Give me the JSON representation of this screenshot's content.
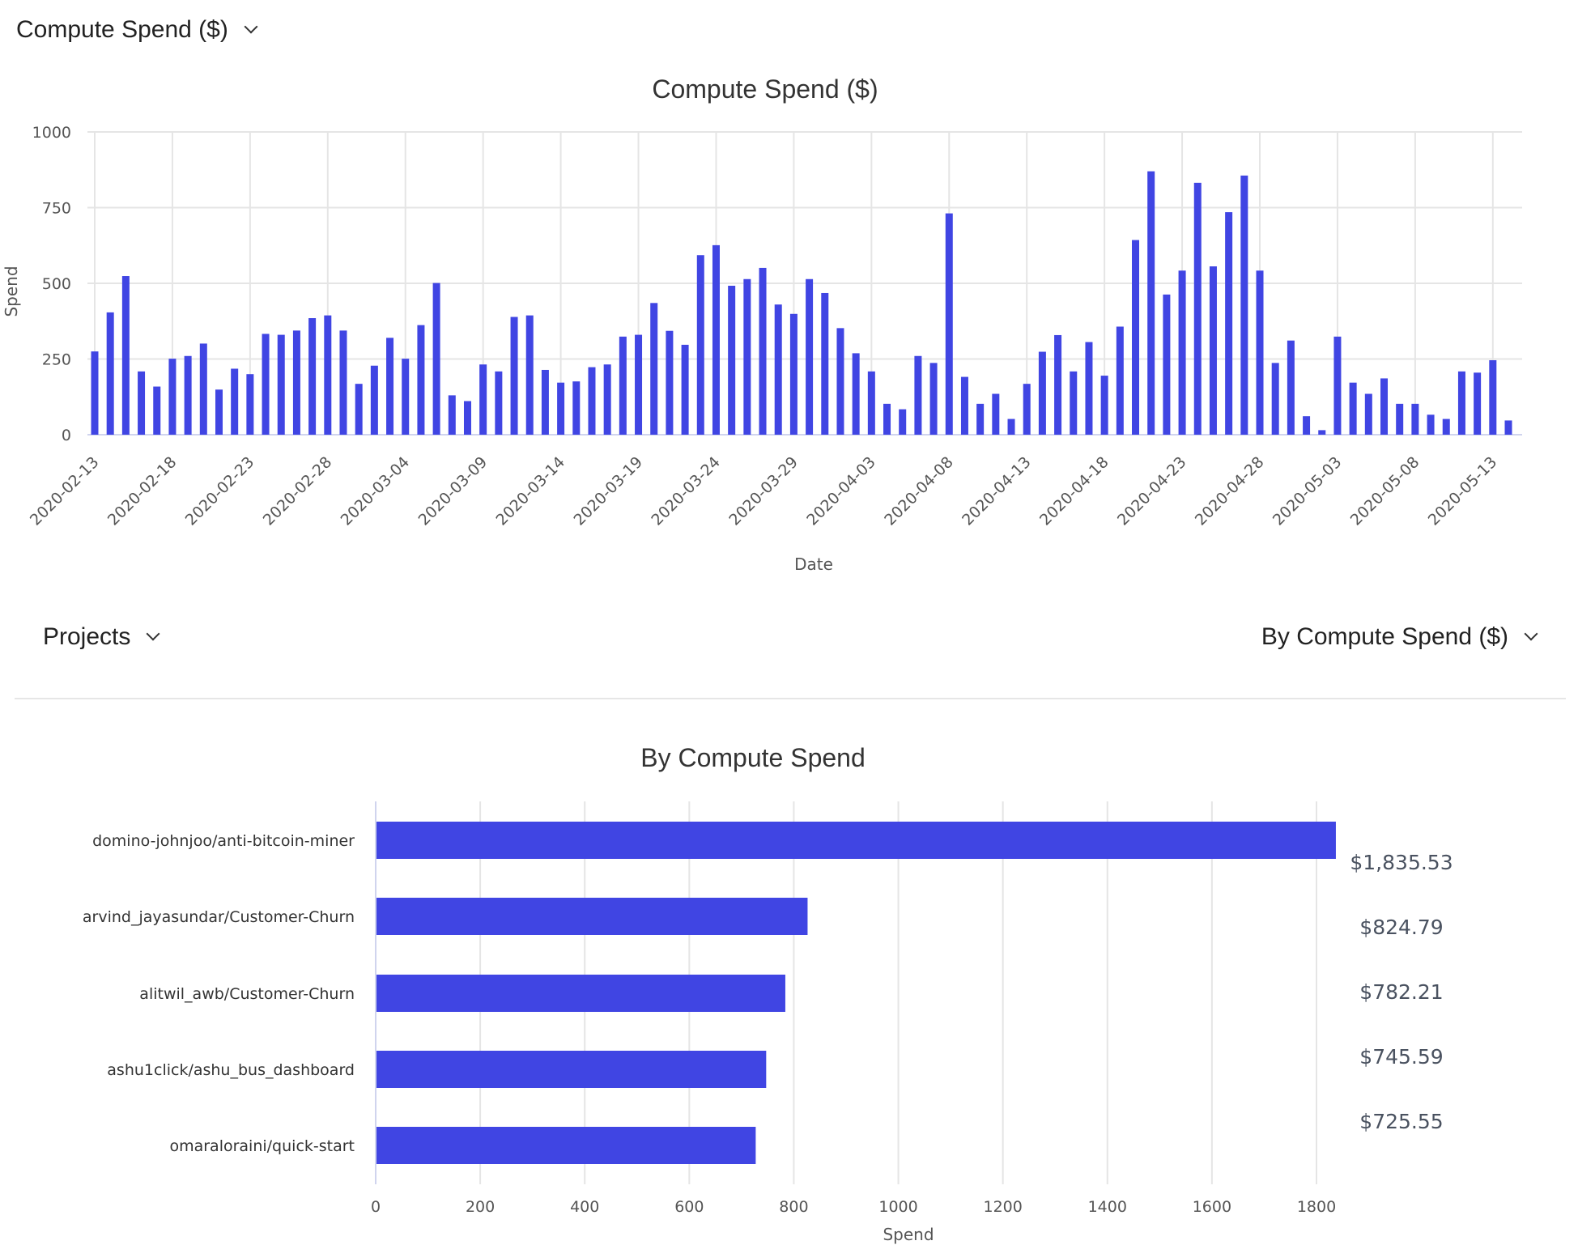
{
  "header": {
    "metric_dropdown": "Compute Spend ($)"
  },
  "colors": {
    "bar": "#4045E3",
    "grid": "#e5e5e5"
  },
  "section2": {
    "group_dropdown": "Projects",
    "sort_dropdown": "By Compute Spend ($)"
  },
  "chart_data": [
    {
      "type": "bar",
      "title": "Compute Spend ($)",
      "xlabel": "Date",
      "ylabel": "Spend",
      "ylim": [
        0,
        1000
      ],
      "yticks": [
        "0",
        "250",
        "500",
        "750",
        "1000"
      ],
      "xticks": [
        "2020-02-13",
        "2020-02-18",
        "2020-02-23",
        "2020-02-28",
        "2020-03-04",
        "2020-03-09",
        "2020-03-14",
        "2020-03-19",
        "2020-03-24",
        "2020-03-29",
        "2020-04-03",
        "2020-04-08",
        "2020-04-13",
        "2020-04-18",
        "2020-04-23",
        "2020-04-28",
        "2020-05-03",
        "2020-05-08",
        "2020-05-13"
      ],
      "grid": true,
      "start_date": "2020-02-13",
      "values": [
        275,
        404,
        524,
        209,
        159,
        251,
        260,
        301,
        149,
        218,
        200,
        333,
        330,
        344,
        385,
        394,
        344,
        168,
        228,
        320,
        251,
        362,
        501,
        130,
        111,
        232,
        209,
        389,
        394,
        214,
        172,
        176,
        223,
        232,
        324,
        330,
        435,
        343,
        297,
        593,
        626,
        492,
        514,
        551,
        430,
        399,
        514,
        468,
        352,
        269,
        209,
        102,
        84,
        260,
        237,
        731,
        191,
        102,
        135,
        52,
        168,
        274,
        329,
        209,
        306,
        195,
        357,
        643,
        870,
        463,
        542,
        832,
        556,
        735,
        856,
        542,
        237,
        311,
        61,
        15,
        324,
        172,
        135,
        186,
        102,
        102,
        66,
        52,
        209,
        205,
        246,
        47
      ]
    },
    {
      "type": "bar",
      "orientation": "horizontal",
      "title": "By Compute Spend",
      "xlabel": "Spend",
      "xlim": [
        0,
        1850
      ],
      "xticks": [
        "0",
        "200",
        "400",
        "600",
        "800",
        "1000",
        "1200",
        "1400",
        "1600",
        "1800"
      ],
      "grid": true,
      "categories": [
        "domino-johnjoo/anti-bitcoin-miner",
        "arvind_jayasundar/Customer-Churn",
        "alitwil_awb/Customer-Churn",
        "ashu1click/ashu_bus_dashboard",
        "omaraloraini/quick-start"
      ],
      "values": [
        1835.53,
        824.79,
        782.21,
        745.59,
        725.55
      ],
      "labels": [
        "$1,835.53",
        "$824.79",
        "$782.21",
        "$745.59",
        "$725.55"
      ]
    }
  ]
}
